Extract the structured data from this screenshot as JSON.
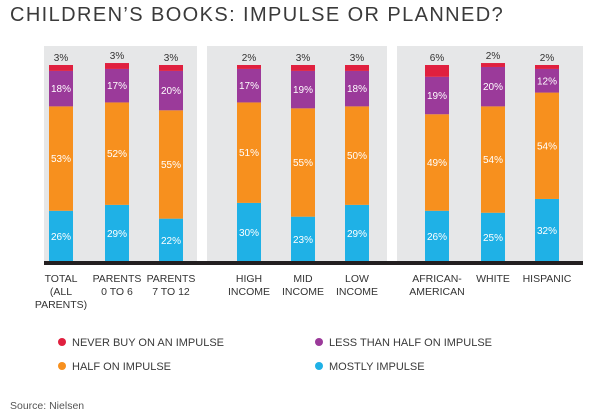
{
  "chart_data": {
    "type": "stacked-bar",
    "title": "CHILDREN’S BOOKS: IMPULSE OR PLANNED?",
    "categories": [
      [
        "TOTAL",
        "(ALL",
        "PARENTS)"
      ],
      [
        "PARENTS",
        "0 TO 6"
      ],
      [
        "PARENTS",
        "7 TO 12"
      ],
      [
        "HIGH",
        "INCOME"
      ],
      [
        "MID",
        "INCOME"
      ],
      [
        "LOW",
        "INCOME"
      ],
      [
        "AFRICAN-",
        "AMERICAN"
      ],
      [
        "WHITE"
      ],
      [
        "HISPANIC"
      ]
    ],
    "groups": [
      [
        0,
        1,
        2
      ],
      [
        3,
        4,
        5
      ],
      [
        6,
        7,
        8
      ]
    ],
    "series": [
      {
        "name": "MOSTLY IMPULSE",
        "color": "#1fb1e6",
        "values": [
          26,
          29,
          22,
          30,
          23,
          29,
          26,
          25,
          32
        ]
      },
      {
        "name": "HALF ON IMPULSE",
        "color": "#f7901e",
        "values": [
          53,
          52,
          55,
          51,
          55,
          50,
          49,
          54,
          54
        ]
      },
      {
        "name": "LESS THAN HALF ON IMPULSE",
        "color": "#9b3a9a",
        "values": [
          18,
          17,
          20,
          17,
          19,
          18,
          19,
          20,
          12
        ]
      },
      {
        "name": "NEVER BUY ON AN IMPULSE",
        "color": "#e0203f",
        "values": [
          3,
          3,
          3,
          2,
          3,
          3,
          6,
          2,
          2
        ]
      }
    ],
    "ylim": [
      0,
      100
    ],
    "value_suffix": "%"
  },
  "legend": {
    "never": "NEVER BUY ON AN IMPULSE",
    "less_than_half": "LESS THAN HALF ON IMPULSE",
    "half": "HALF ON IMPULSE",
    "mostly": "MOSTLY IMPULSE"
  },
  "colors": {
    "panel_background": "#e6e7e8",
    "baseline": "#231f20",
    "never": "#e0203f",
    "less_than_half": "#9b3a9a",
    "half": "#f7901e",
    "mostly": "#1fb1e6"
  },
  "source": "Source: Nielsen"
}
